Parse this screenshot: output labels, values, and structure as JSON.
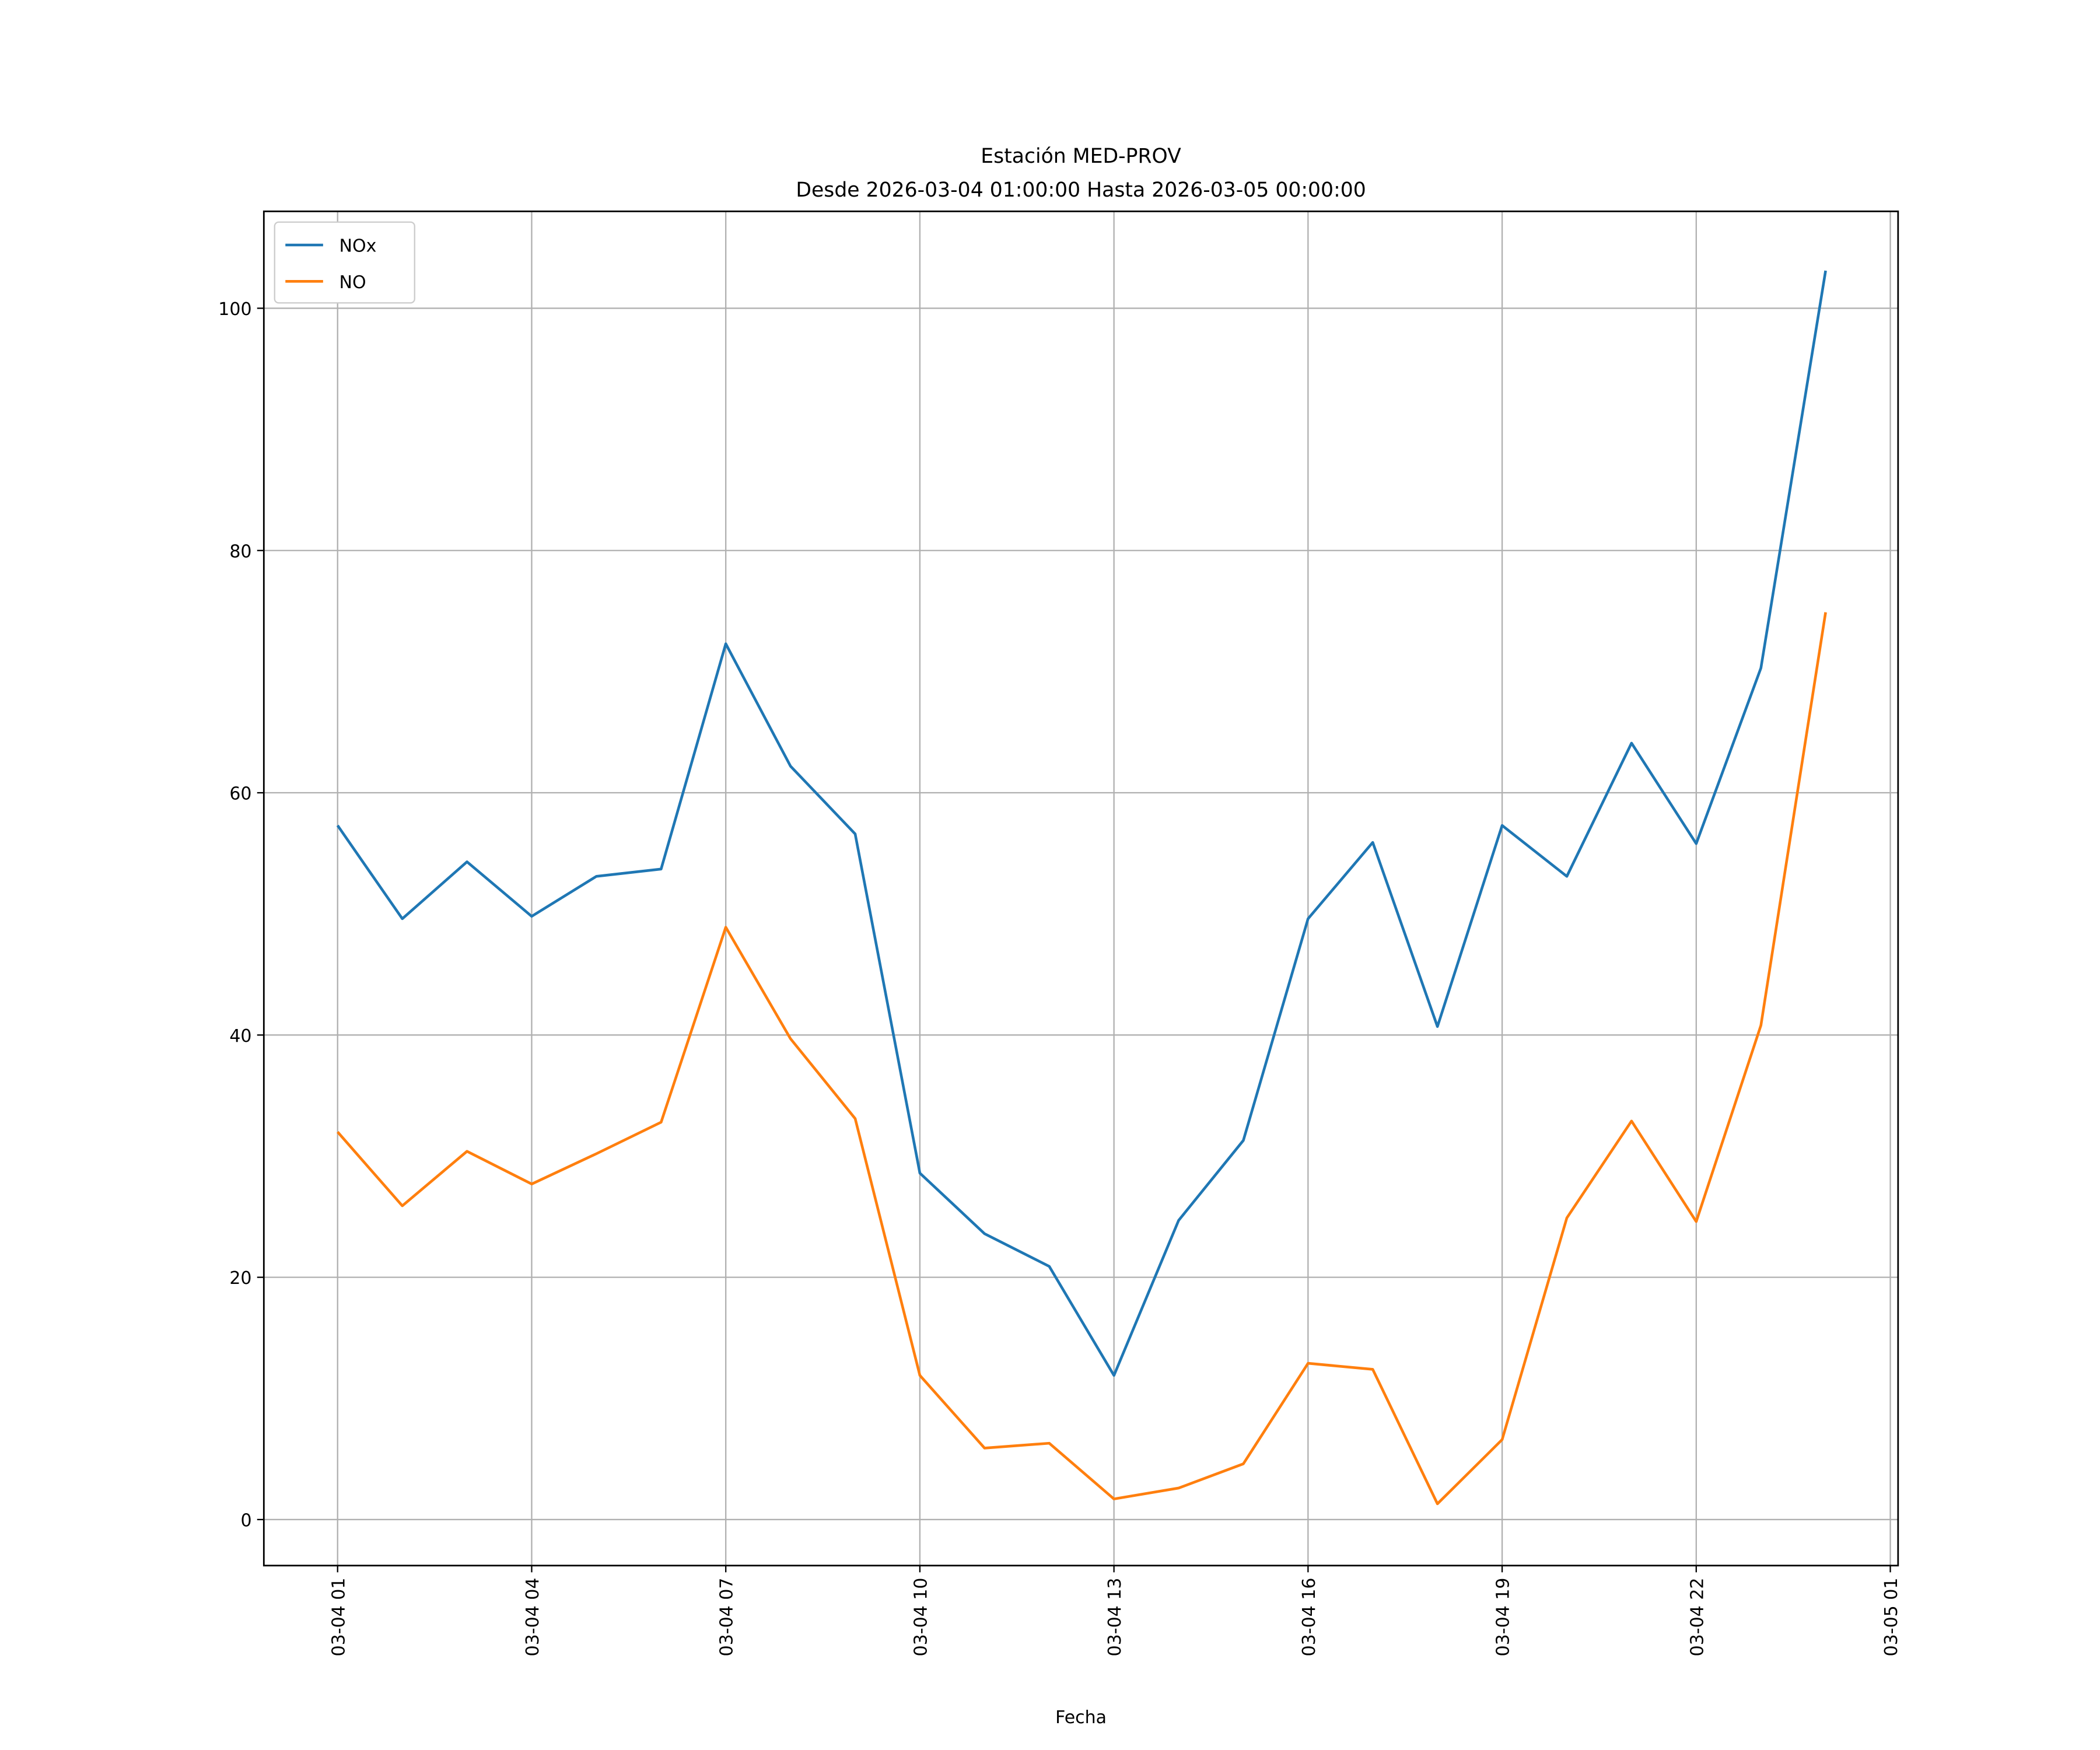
{
  "chart_data": {
    "type": "line",
    "title": "Estación MED-PROV",
    "subtitle": "Desde 2026-03-04 01:00:00 Hasta 2026-03-05 00:00:00",
    "xlabel": "Fecha",
    "ylabel": "",
    "x_hours_from_start": [
      0,
      1,
      2,
      3,
      4,
      5,
      6,
      7,
      8,
      9,
      10,
      11,
      12,
      13,
      14,
      15,
      16,
      17,
      18,
      19,
      20,
      21,
      22,
      23
    ],
    "xlim": [
      -1.14,
      24.12
    ],
    "ylim": [
      -3.8,
      108
    ],
    "x_ticks": [
      {
        "h": 0,
        "label": "03-04 01"
      },
      {
        "h": 3,
        "label": "03-04 04"
      },
      {
        "h": 6,
        "label": "03-04 07"
      },
      {
        "h": 9,
        "label": "03-04 10"
      },
      {
        "h": 12,
        "label": "03-04 13"
      },
      {
        "h": 15,
        "label": "03-04 16"
      },
      {
        "h": 18,
        "label": "03-04 19"
      },
      {
        "h": 21,
        "label": "03-04 22"
      },
      {
        "h": 24,
        "label": "03-05 01"
      }
    ],
    "y_ticks": [
      {
        "v": 0,
        "label": "0"
      },
      {
        "v": 20,
        "label": "20"
      },
      {
        "v": 40,
        "label": "40"
      },
      {
        "v": 60,
        "label": "60"
      },
      {
        "v": 80,
        "label": "80"
      },
      {
        "v": 100,
        "label": "100"
      }
    ],
    "grid": true,
    "legend_position": "top-left",
    "series": [
      {
        "name": "NOx",
        "color": "#1f77b4",
        "values": [
          57.3,
          49.6,
          54.3,
          49.8,
          53.1,
          53.7,
          72.3,
          62.2,
          56.6,
          28.6,
          23.6,
          20.9,
          11.9,
          24.7,
          31.3,
          49.6,
          55.9,
          40.7,
          57.3,
          53.1,
          64.1,
          55.8,
          70.3,
          103.1
        ]
      },
      {
        "name": "NO",
        "color": "#ff7f0e",
        "values": [
          32.0,
          25.9,
          30.4,
          27.7,
          30.2,
          32.8,
          48.9,
          39.7,
          33.1,
          11.9,
          5.9,
          6.3,
          1.7,
          2.6,
          4.6,
          12.9,
          12.4,
          1.3,
          6.6,
          24.9,
          32.9,
          24.6,
          40.8,
          74.9
        ]
      }
    ]
  }
}
